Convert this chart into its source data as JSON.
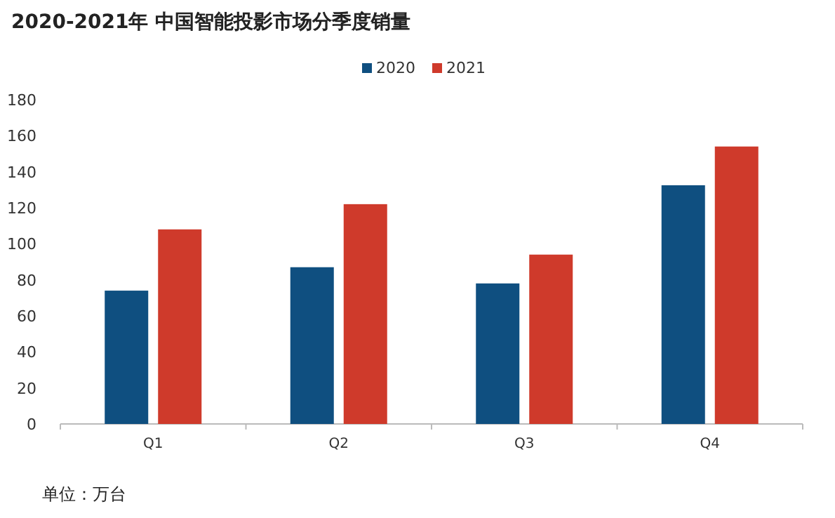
{
  "chart_data": {
    "type": "bar",
    "title": "2020-2021年 中国智能投影市场分季度销量",
    "categories": [
      "Q1",
      "Q2",
      "Q3",
      "Q4"
    ],
    "series": [
      {
        "name": "2020",
        "color": "#0f4f80",
        "values": [
          74,
          87,
          78,
          132.5
        ]
      },
      {
        "name": "2021",
        "color": "#cf3a2b",
        "values": [
          108,
          122,
          94,
          154
        ]
      }
    ],
    "ylim": [
      0,
      180
    ],
    "yticks": [
      0,
      20,
      40,
      60,
      80,
      100,
      120,
      140,
      160,
      180
    ],
    "grid": false,
    "legend": "top",
    "annotations": [
      "单位：万台"
    ]
  }
}
